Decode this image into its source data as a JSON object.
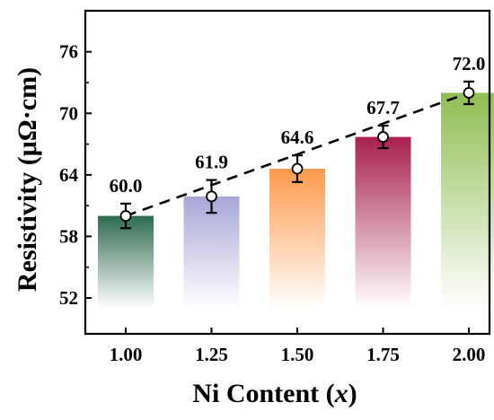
{
  "chart_data": {
    "type": "bar",
    "xlabel_main": "Ni Content (",
    "xlabel_var": "x",
    "xlabel_end": ")",
    "ylabel": "Resistivity (μΩ·cm)",
    "categories": [
      "1.00",
      "1.25",
      "1.50",
      "1.75",
      "2.00"
    ],
    "values": [
      60.0,
      61.9,
      64.6,
      67.7,
      72.0
    ],
    "errors": [
      1.2,
      1.6,
      1.3,
      1.1,
      1.1
    ],
    "data_labels": [
      "60.0",
      "61.9",
      "64.6",
      "67.7",
      "72.0"
    ],
    "ylim": [
      48.5,
      80
    ],
    "yticks": [
      52,
      58,
      64,
      70,
      76
    ],
    "ytick_labels": [
      "52",
      "58",
      "64",
      "70",
      "76"
    ],
    "bar_colors": [
      "#2e6b4f",
      "#a8a6d6",
      "#ff9a4d",
      "#a8204f",
      "#8fbe52"
    ],
    "trend_line": "dashed",
    "grid": false,
    "legend": "none"
  }
}
